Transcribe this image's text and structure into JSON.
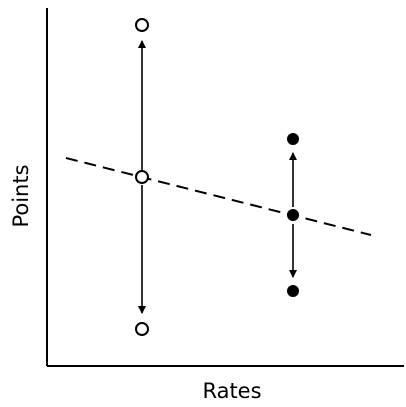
{
  "diagram": {
    "x_axis_label": "Rates",
    "y_axis_label": "Points",
    "colors": {
      "ink": "#000000",
      "background": "#ffffff"
    },
    "groups": [
      {
        "name": "open-circle-group",
        "marker": "open-circle",
        "points": [
          "top",
          "middle",
          "bottom"
        ],
        "arrows": [
          "up",
          "down"
        ]
      },
      {
        "name": "filled-circle-group",
        "marker": "filled-circle",
        "points": [
          "top",
          "middle",
          "bottom"
        ],
        "arrows": [
          "up",
          "down"
        ]
      }
    ],
    "trend_line": {
      "style": "dashed",
      "direction": "descending"
    }
  }
}
